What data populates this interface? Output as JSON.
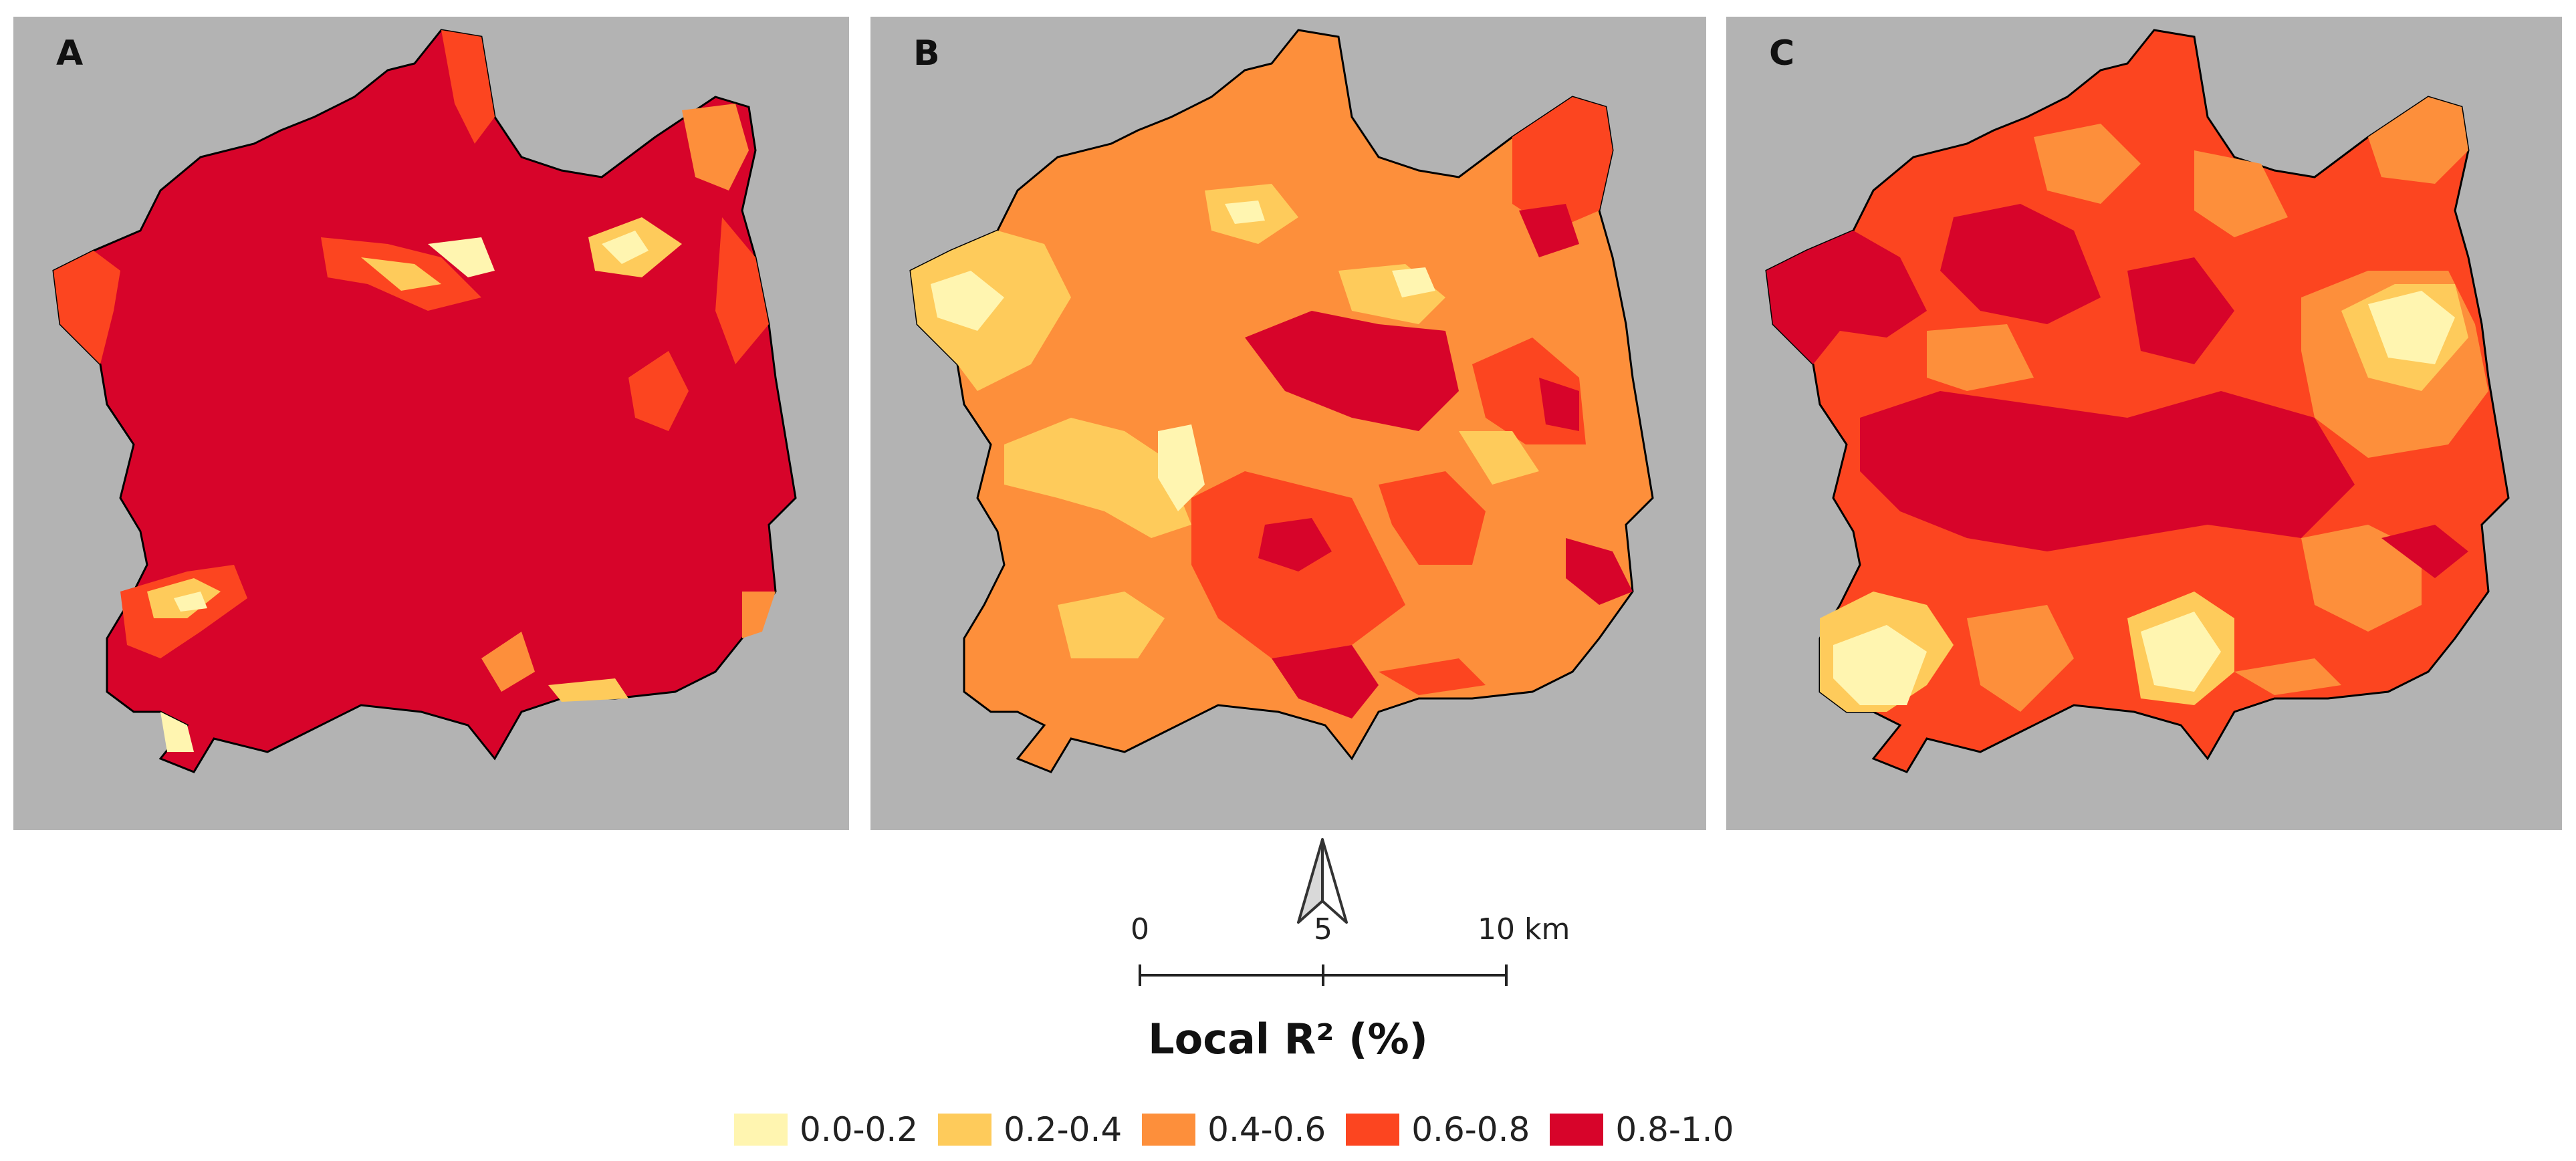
{
  "panels": [
    {
      "label": "A",
      "dominant_class": "0.8-1.0"
    },
    {
      "label": "B",
      "dominant_class": "0.4-0.6"
    },
    {
      "label": "C",
      "dominant_class": "0.6-0.8"
    }
  ],
  "scale_bar": {
    "ticks": [
      "0",
      "5",
      "10 km"
    ]
  },
  "legend": {
    "title": "Local R² (%)",
    "items": [
      {
        "label": "0.0-0.2",
        "color": "#fff5b0"
      },
      {
        "label": "0.2-0.4",
        "color": "#fecb5b"
      },
      {
        "label": "0.4-0.6",
        "color": "#fd8f3b"
      },
      {
        "label": "0.6-0.8",
        "color": "#fc4520"
      },
      {
        "label": "0.8-1.0",
        "color": "#d7042a"
      }
    ]
  },
  "colors": {
    "background": "#b3b3b3",
    "outline": "#000000"
  }
}
